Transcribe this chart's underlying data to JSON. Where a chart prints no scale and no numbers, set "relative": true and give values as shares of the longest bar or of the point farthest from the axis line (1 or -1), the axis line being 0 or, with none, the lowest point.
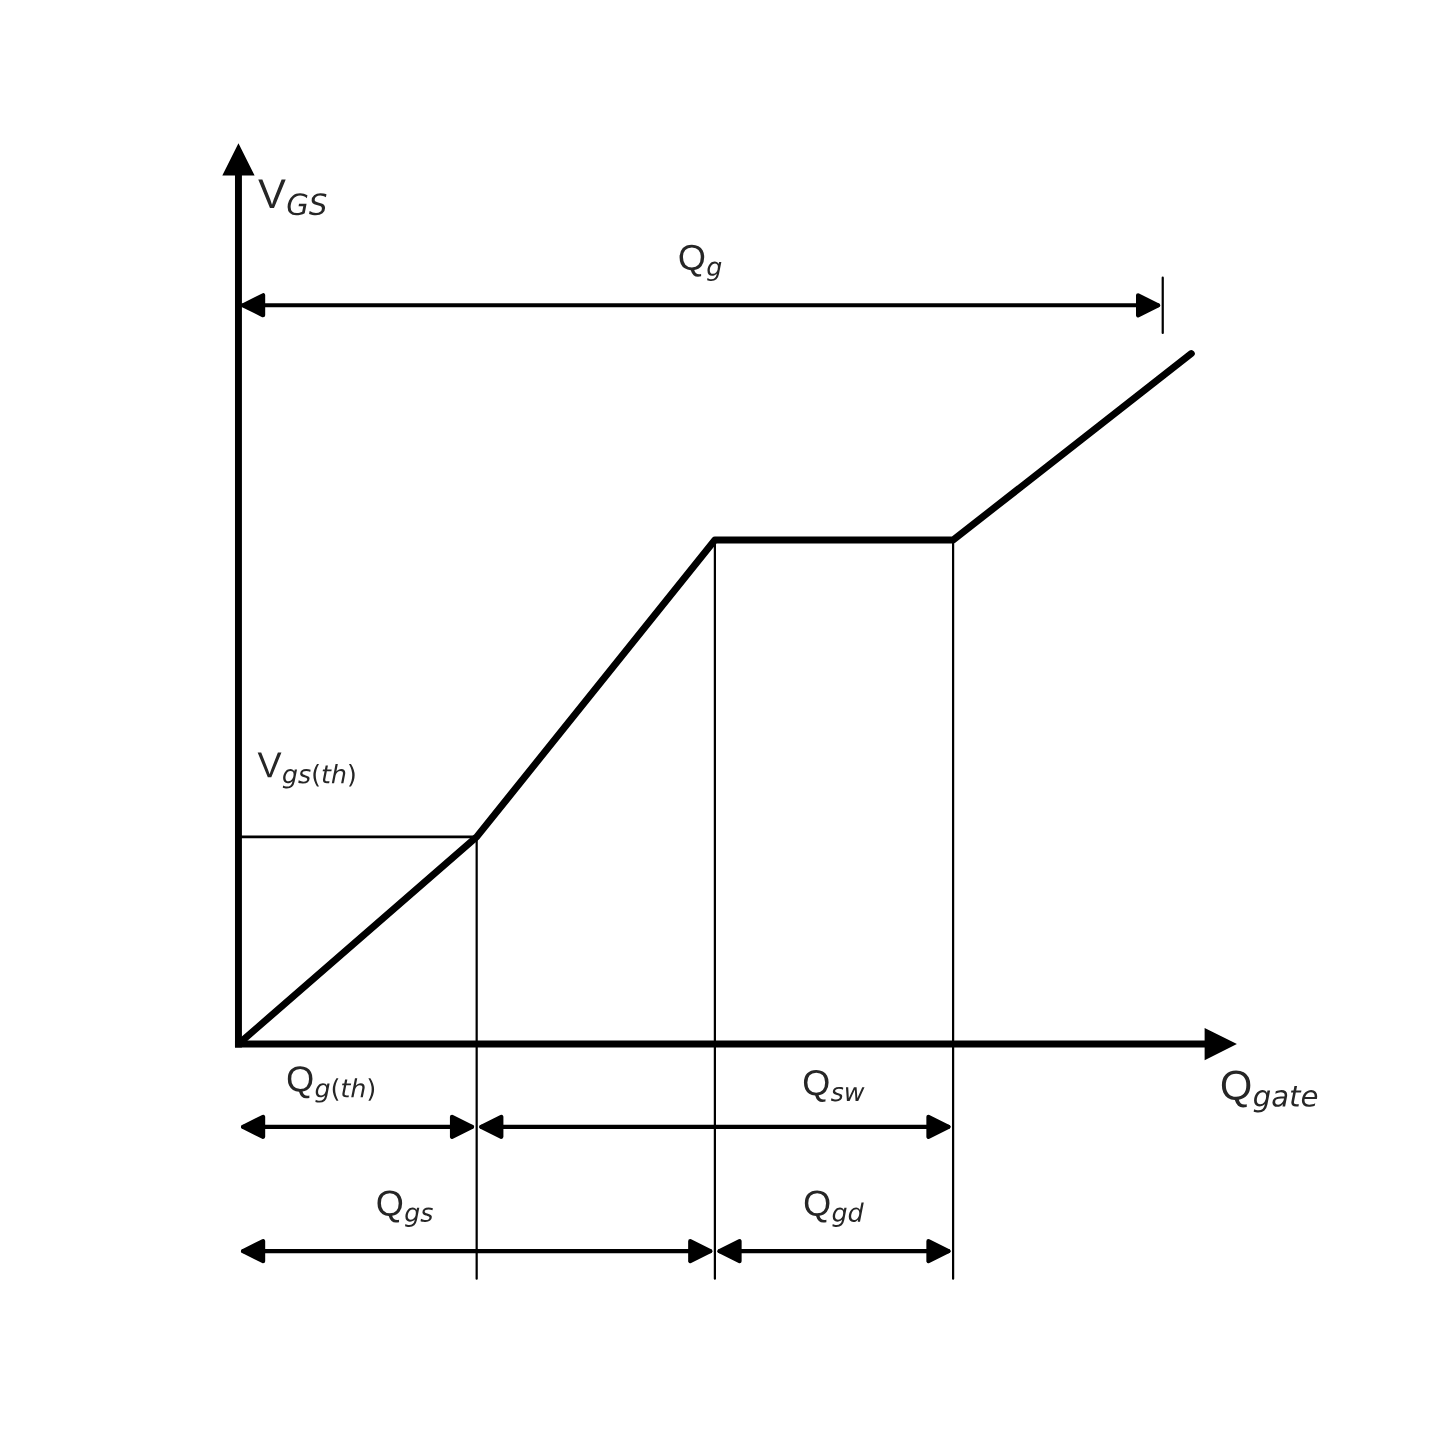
{
  "chart_data": {
    "type": "line",
    "relative": true,
    "categories": [
      null,
      null,
      null,
      null,
      null
    ],
    "series": [
      {
        "color": "#000000",
        "values": [
          0,
          0.3,
          0.73,
          0.73,
          1.0
        ]
      }
    ],
    "ref_lines": [
      {
        "axis": "y",
        "value": 0.3,
        "label": "V$_{gs(th)}$",
        "color": "#000000"
      }
    ],
    "annotations": [
      "V$_{GS}$",
      "Q$_{gate}$",
      "Q$_{g}$",
      "Q$_{g(th)}$",
      "Q$_{sw}$",
      "Q$_{gs}$",
      "Q$_{gd}$"
    ],
    "marker": "none",
    "line_style": "solid"
  }
}
